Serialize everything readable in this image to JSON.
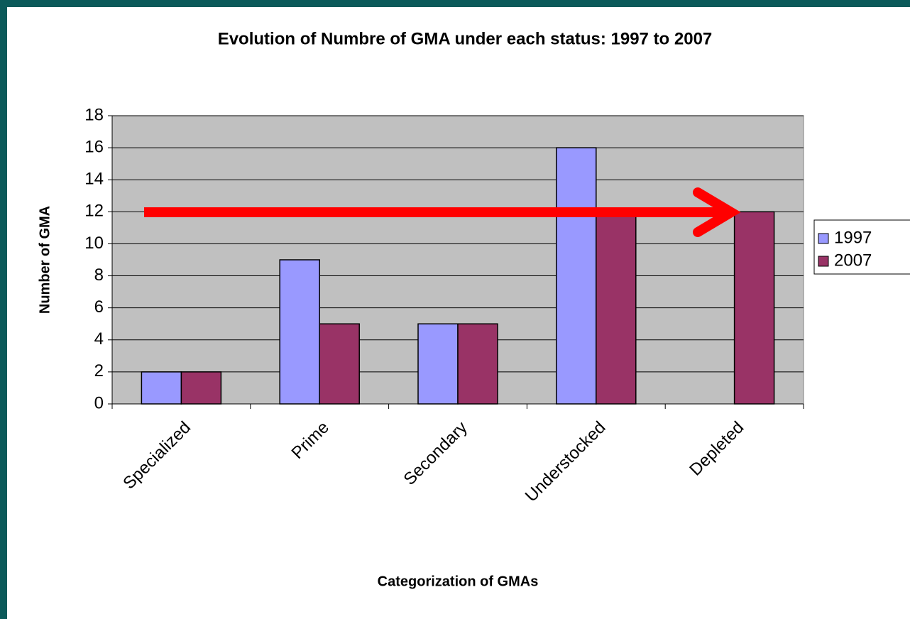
{
  "chart_data": {
    "type": "bar",
    "title": "Evolution of Numbre of GMA under each status: 1997 to 2007",
    "x_label": "Categorization of GMAs",
    "y_label": "Number of GMA",
    "categories": [
      "Specialized",
      "Prime",
      "Secondary",
      "Understocked",
      "Depleted"
    ],
    "series": [
      {
        "name": "1997",
        "color": "#9999ff",
        "values": [
          2,
          9,
          5,
          16,
          null
        ]
      },
      {
        "name": "2007",
        "color": "#993366",
        "values": [
          2,
          5,
          5,
          12,
          12
        ]
      }
    ],
    "ylim": [
      0,
      18
    ],
    "yticks": [
      0,
      2,
      4,
      6,
      8,
      10,
      12,
      14,
      16,
      18
    ],
    "grid": true,
    "legend": "right"
  }
}
